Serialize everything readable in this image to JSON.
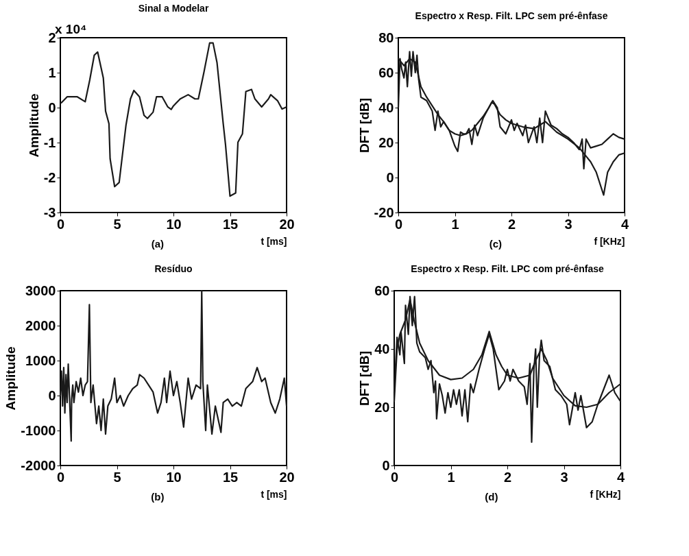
{
  "chart_data": [
    {
      "type": "line",
      "title": "Sinal a Modelar",
      "xlabel": "t [ms]",
      "ylabel": "Amplitude",
      "annotations": [
        "(a)",
        "x 10⁴"
      ],
      "xlim": [
        0,
        20
      ],
      "xticks": [
        0,
        5,
        10,
        15,
        20
      ],
      "ylim": [
        -3,
        2
      ],
      "yticks": [
        -3,
        -2,
        -1,
        0,
        1,
        2
      ],
      "grid": false,
      "line_style": "solid",
      "series": [
        {
          "color": "#1a1a1a",
          "x": [
            0.1,
            0.6,
            1.5,
            2.2,
            2.6,
            3.0,
            3.3,
            3.8,
            4.0,
            4.3,
            4.4,
            4.8,
            5.2,
            5.8,
            6.2,
            6.5,
            7.0,
            7.4,
            7.7,
            8.2,
            8.5,
            9.0,
            9.5,
            9.8,
            10.0,
            10.6,
            11.3,
            11.9,
            12.2,
            12.7,
            13.2,
            13.5,
            13.85,
            14.4,
            14.6,
            15.0,
            15.5,
            15.7,
            16.1,
            16.4,
            16.9,
            17.2,
            17.8,
            18.4,
            18.6,
            19.2,
            19.6,
            20.0
          ],
          "values": [
            0.14,
            0.31,
            0.31,
            0.17,
            0.79,
            1.5,
            1.59,
            0.85,
            -0.1,
            -0.46,
            -1.46,
            -2.26,
            -2.14,
            -0.51,
            0.25,
            0.49,
            0.31,
            -0.22,
            -0.31,
            -0.13,
            0.31,
            0.31,
            0.02,
            -0.05,
            0.05,
            0.25,
            0.37,
            0.25,
            0.25,
            1.02,
            1.85,
            1.85,
            1.29,
            -0.46,
            -1.05,
            -2.53,
            -2.44,
            -0.99,
            -0.75,
            0.46,
            0.52,
            0.25,
            0.02,
            0.25,
            0.37,
            0.2,
            -0.04,
            0.02
          ]
        }
      ]
    },
    {
      "type": "line",
      "title": "Espectro x Resp. Filt. LPC sem pré-ênfase",
      "xlabel": "f [KHz]",
      "ylabel": "DFT   [dB]",
      "annotations": [
        "(c)"
      ],
      "xlim": [
        0,
        4
      ],
      "xticks": [
        0,
        1,
        2,
        3,
        4
      ],
      "ylim": [
        -20,
        80
      ],
      "yticks": [
        -20,
        0,
        20,
        40,
        60,
        80
      ],
      "grid": false,
      "line_style": "solid",
      "series": [
        {
          "color": "#1a1a1a",
          "x": [
            0,
            0.03,
            0.06,
            0.1,
            0.13,
            0.16,
            0.2,
            0.23,
            0.26,
            0.3,
            0.33,
            0.36,
            0.4,
            0.5,
            0.6,
            0.65,
            0.7,
            0.75,
            0.8,
            0.9,
            1.0,
            1.05,
            1.1,
            1.15,
            1.2,
            1.25,
            1.3,
            1.35,
            1.4,
            1.5,
            1.6,
            1.67,
            1.75,
            1.8,
            1.9,
            2.0,
            2.05,
            2.1,
            2.2,
            2.25,
            2.3,
            2.4,
            2.45,
            2.5,
            2.55,
            2.6,
            2.7,
            2.8,
            2.9,
            3.0,
            3.1,
            3.2,
            3.25,
            3.28,
            3.32,
            3.4,
            3.5,
            3.6,
            3.7,
            3.8,
            3.9,
            4.0
          ],
          "values": [
            40,
            68,
            62,
            57,
            66,
            52,
            72,
            58,
            72,
            60,
            70,
            56,
            46,
            44,
            38,
            27,
            38,
            29,
            32,
            27,
            18,
            15,
            26,
            25,
            25,
            28,
            19,
            30,
            24,
            34,
            40,
            44,
            40,
            29,
            25,
            33,
            27,
            31,
            24,
            30,
            20,
            29,
            20,
            34,
            20,
            38,
            30,
            28,
            25,
            23,
            20,
            16,
            22,
            5,
            22,
            17,
            18,
            19,
            22,
            25,
            23,
            22
          ]
        },
        {
          "color": "#1a1a1a",
          "x": [
            0,
            0.1,
            0.2,
            0.3,
            0.4,
            0.5,
            0.6,
            0.7,
            0.8,
            0.9,
            1.0,
            1.1,
            1.2,
            1.3,
            1.4,
            1.5,
            1.6,
            1.65,
            1.7,
            1.8,
            1.9,
            2.0,
            2.2,
            2.4,
            2.5,
            2.6,
            2.7,
            2.8,
            3.0,
            3.2,
            3.3,
            3.4,
            3.5,
            3.63,
            3.7,
            3.8,
            3.9,
            4.0
          ],
          "values": [
            68,
            64,
            68,
            66,
            52,
            46,
            41,
            36,
            32,
            27,
            25,
            24,
            25,
            27,
            31,
            35,
            40,
            43,
            42,
            36,
            33,
            31,
            29,
            28,
            30,
            32,
            29,
            26,
            22,
            17,
            13,
            9,
            3,
            -10,
            3,
            9,
            13,
            14
          ]
        }
      ]
    },
    {
      "type": "line",
      "title": "Resíduo",
      "xlabel": "t [ms]",
      "ylabel": "Amplitude",
      "annotations": [
        "(b)"
      ],
      "xlim": [
        0,
        20
      ],
      "xticks": [
        0,
        5,
        10,
        15,
        20
      ],
      "ylim": [
        -2000,
        3000
      ],
      "yticks": [
        -2000,
        -1000,
        0,
        1000,
        2000,
        3000
      ],
      "grid": false,
      "line_style": "solid",
      "series": [
        {
          "color": "#1a1a1a",
          "x": [
            0.0,
            0.1,
            0.2,
            0.3,
            0.4,
            0.5,
            0.6,
            0.7,
            0.96,
            1.0,
            1.1,
            1.2,
            1.4,
            1.6,
            1.8,
            2.0,
            2.2,
            2.4,
            2.57,
            2.7,
            2.9,
            3.2,
            3.4,
            3.6,
            3.8,
            4.0,
            4.2,
            4.5,
            4.8,
            5.0,
            5.3,
            5.6,
            6.0,
            6.4,
            6.8,
            7.0,
            7.4,
            7.8,
            8.2,
            8.6,
            8.9,
            9.2,
            9.4,
            9.7,
            10.0,
            10.3,
            10.6,
            10.9,
            11.3,
            11.6,
            12.0,
            12.4,
            12.5,
            12.6,
            12.85,
            13.0,
            13.4,
            13.7,
            14.2,
            14.4,
            14.8,
            15.2,
            15.6,
            16.0,
            16.4,
            17.0,
            17.4,
            17.8,
            18.1,
            18.6,
            19.0,
            19.4,
            19.6,
            19.8,
            20.0
          ],
          "values": [
            0,
            700,
            -300,
            800,
            -500,
            600,
            -200,
            900,
            -1300,
            -100,
            300,
            -200,
            400,
            100,
            500,
            0,
            300,
            400,
            2600,
            -200,
            300,
            -800,
            -300,
            -1000,
            -100,
            -1100,
            -300,
            -100,
            500,
            -200,
            0,
            -300,
            0,
            200,
            300,
            600,
            500,
            300,
            100,
            -500,
            -200,
            500,
            -200,
            700,
            0,
            400,
            -200,
            -900,
            500,
            -100,
            300,
            200,
            3000,
            400,
            -1000,
            300,
            -1100,
            -300,
            -1050,
            -200,
            -100,
            -300,
            -200,
            -300,
            200,
            400,
            800,
            400,
            500,
            -200,
            -500,
            -100,
            200,
            500,
            -300
          ]
        }
      ]
    },
    {
      "type": "line",
      "title": "Espectro x Resp. Filt. LPC com pré-ênfase",
      "xlabel": "f [KHz]",
      "ylabel": "DFT   [dB]",
      "annotations": [
        "(d)"
      ],
      "xlim": [
        0,
        4
      ],
      "xticks": [
        0,
        1,
        2,
        3,
        4
      ],
      "ylim": [
        0,
        60
      ],
      "yticks": [
        0,
        20,
        40,
        60
      ],
      "grid": false,
      "line_style": "solid",
      "series": [
        {
          "color": "#1a1a1a",
          "x": [
            0,
            0.05,
            0.1,
            0.12,
            0.18,
            0.2,
            0.25,
            0.28,
            0.32,
            0.36,
            0.4,
            0.45,
            0.55,
            0.6,
            0.65,
            0.7,
            0.73,
            0.75,
            0.8,
            0.85,
            0.9,
            0.95,
            1.0,
            1.05,
            1.1,
            1.15,
            1.2,
            1.25,
            1.3,
            1.35,
            1.4,
            1.5,
            1.6,
            1.68,
            1.75,
            1.85,
            1.95,
            2.0,
            2.05,
            2.1,
            2.2,
            2.3,
            2.35,
            2.4,
            2.43,
            2.47,
            2.5,
            2.53,
            2.57,
            2.6,
            2.65,
            2.75,
            2.85,
            2.95,
            3.05,
            3.1,
            3.2,
            3.25,
            3.3,
            3.4,
            3.5,
            3.6,
            3.7,
            3.8,
            3.9,
            4.0
          ],
          "values": [
            25,
            44,
            38,
            46,
            35,
            55,
            45,
            58,
            48,
            58,
            42,
            39,
            37,
            33,
            36,
            25,
            29,
            16,
            28,
            24,
            18,
            25,
            20,
            26,
            21,
            26,
            17,
            26,
            15,
            28,
            25,
            33,
            40,
            45,
            40,
            26,
            29,
            33,
            29,
            33,
            29,
            27,
            21,
            35,
            8,
            33,
            40,
            20,
            38,
            43,
            36,
            34,
            26,
            24,
            21,
            14,
            25,
            19,
            24,
            13,
            15,
            21,
            26,
            31,
            25,
            22
          ]
        },
        {
          "color": "#1a1a1a",
          "x": [
            0,
            0.05,
            0.1,
            0.2,
            0.28,
            0.35,
            0.45,
            0.6,
            0.8,
            1.0,
            1.2,
            1.4,
            1.55,
            1.68,
            1.8,
            1.9,
            2.0,
            2.2,
            2.4,
            2.5,
            2.6,
            2.7,
            2.8,
            3.0,
            3.2,
            3.4,
            3.6,
            3.8,
            4.0
          ],
          "values": [
            22,
            40,
            45,
            50,
            57,
            50,
            42,
            36,
            31,
            29.5,
            30,
            33,
            38,
            46,
            38,
            34,
            31,
            30,
            31,
            36,
            40,
            36,
            30,
            24,
            20.5,
            20,
            21,
            25,
            28
          ]
        }
      ]
    }
  ]
}
